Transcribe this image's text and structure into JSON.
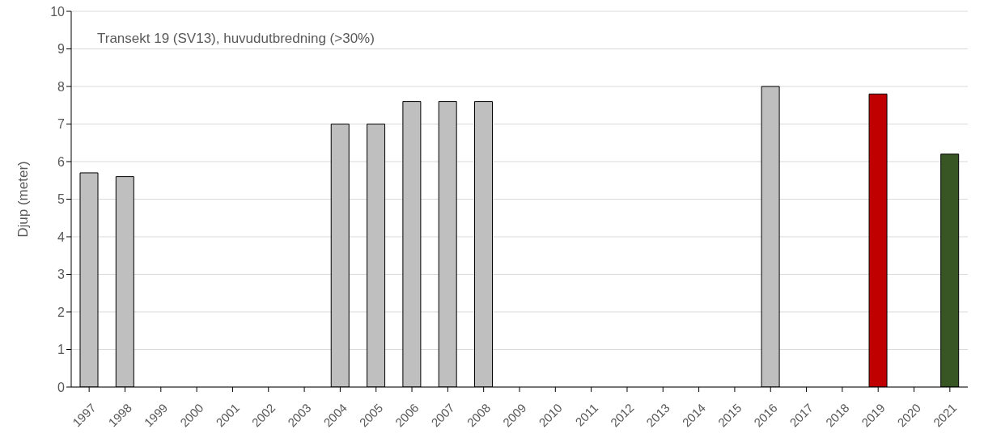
{
  "chart_data": {
    "type": "bar",
    "title": "Transekt 19 (SV13), huvudutbredning (>30%)",
    "ylabel": "Djup (meter)",
    "categories": [
      "1997",
      "1998",
      "1999",
      "2000",
      "2001",
      "2002",
      "2003",
      "2004",
      "2005",
      "2006",
      "2007",
      "2008",
      "2009",
      "2010",
      "2011",
      "2012",
      "2013",
      "2014",
      "2015",
      "2016",
      "2017",
      "2018",
      "2019",
      "2020",
      "2021"
    ],
    "values": [
      5.7,
      5.6,
      null,
      null,
      null,
      null,
      null,
      7.0,
      7.0,
      7.6,
      7.6,
      7.6,
      null,
      null,
      null,
      null,
      null,
      null,
      null,
      8.0,
      null,
      null,
      7.8,
      null,
      6.2
    ],
    "colors": [
      "#bfbfbf",
      "#bfbfbf",
      "#bfbfbf",
      "#bfbfbf",
      "#bfbfbf",
      "#bfbfbf",
      "#bfbfbf",
      "#bfbfbf",
      "#bfbfbf",
      "#bfbfbf",
      "#bfbfbf",
      "#bfbfbf",
      "#bfbfbf",
      "#bfbfbf",
      "#bfbfbf",
      "#bfbfbf",
      "#bfbfbf",
      "#bfbfbf",
      "#bfbfbf",
      "#bfbfbf",
      "#bfbfbf",
      "#bfbfbf",
      "#c00000",
      "#bfbfbf",
      "#375623"
    ],
    "ylim": [
      0,
      10
    ],
    "yticks": [
      0,
      1,
      2,
      3,
      4,
      5,
      6,
      7,
      8,
      9,
      10
    ],
    "grid": "y"
  }
}
